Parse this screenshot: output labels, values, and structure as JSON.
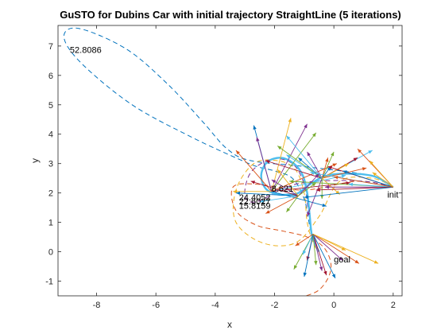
{
  "chart_data": {
    "type": "line",
    "title": "GuSTO for Dubins Car with initial trajectory StraightLine (5 iterations)",
    "xlabel": "x",
    "ylabel": "y",
    "xlim": [
      -9.3,
      2.3
    ],
    "ylim": [
      -1.5,
      7.7
    ],
    "xticks": [
      -8,
      -6,
      -4,
      -2,
      0,
      2
    ],
    "yticks": [
      -1,
      0,
      1,
      2,
      3,
      4,
      5,
      6,
      7
    ],
    "grid": false,
    "legend": "none",
    "colors": [
      "#0072BD",
      "#D95319",
      "#EDB120",
      "#7E2F8E",
      "#77AC30",
      "#4DBEEE",
      "#A2142F"
    ],
    "annotations": [
      {
        "text": "52.8086",
        "x": -8.9,
        "y": 6.88
      },
      {
        "text": "8.621",
        "x": -2.1,
        "y": 2.15
      },
      {
        "text": "24.4052",
        "x": -3.2,
        "y": 1.85
      },
      {
        "text": "22.6027",
        "x": -3.2,
        "y": 1.72
      },
      {
        "text": "15.8159",
        "x": -3.2,
        "y": 1.57
      },
      {
        "text": "init",
        "x": 1.8,
        "y": 1.95
      },
      {
        "text": "goal",
        "x": 0.0,
        "y": -0.25
      }
    ],
    "series": [
      {
        "role": "iter1",
        "color": "#0072BD",
        "dash": "dashed",
        "points": [
          [
            2.0,
            2.2
          ],
          [
            1.2,
            2.6
          ],
          [
            -1.0,
            2.9
          ],
          [
            -2.8,
            3.1
          ],
          [
            -3.6,
            3.5
          ],
          [
            -4.4,
            4.4
          ],
          [
            -5.6,
            5.7
          ],
          [
            -7.0,
            6.9
          ],
          [
            -8.6,
            7.6
          ],
          [
            -9.1,
            7.3
          ],
          [
            -8.5,
            6.4
          ],
          [
            -6.8,
            5.0
          ],
          [
            -4.8,
            3.9
          ],
          [
            -3.2,
            3.15
          ],
          [
            -2.6,
            2.9
          ],
          [
            -2.0,
            2.75
          ],
          [
            -1.4,
            2.5
          ],
          [
            -1.0,
            1.8
          ],
          [
            -0.8,
            0.8
          ],
          [
            -0.65,
            0.3
          ],
          [
            -0.5,
            0.0
          ]
        ]
      },
      {
        "role": "iter2",
        "color": "#D95319",
        "dash": "dashed",
        "points": [
          [
            2.0,
            2.2
          ],
          [
            0.8,
            2.4
          ],
          [
            -1.0,
            2.1
          ],
          [
            -2.6,
            2.3
          ],
          [
            -3.4,
            2.2
          ],
          [
            -3.3,
            1.4
          ],
          [
            -2.6,
            0.9
          ],
          [
            -1.7,
            0.7
          ],
          [
            -0.9,
            0.5
          ],
          [
            -0.3,
            0.1
          ],
          [
            -0.1,
            -0.6
          ],
          [
            -0.5,
            -1.3
          ],
          [
            -1.3,
            -1.6
          ]
        ]
      },
      {
        "role": "iter3",
        "color": "#EDB120",
        "dash": "dashed",
        "points": [
          [
            2.0,
            2.2
          ],
          [
            1.3,
            2.5
          ],
          [
            0.2,
            2.4
          ],
          [
            -0.5,
            1.2
          ],
          [
            -1.3,
            0.3
          ],
          [
            -2.4,
            0.3
          ],
          [
            -3.3,
            1.0
          ],
          [
            -3.3,
            2.1
          ],
          [
            -2.7,
            3.0
          ],
          [
            -1.9,
            3.1
          ],
          [
            -1.3,
            2.8
          ],
          [
            -1.0,
            2.0
          ],
          [
            -0.9,
            1.0
          ],
          [
            -0.7,
            0.3
          ],
          [
            -0.5,
            0.0
          ]
        ]
      },
      {
        "role": "iter4",
        "color": "#7E2F8E",
        "dash": "dashed",
        "points": [
          [
            2.0,
            2.2
          ],
          [
            1.0,
            2.4
          ],
          [
            -0.6,
            2.4
          ],
          [
            -1.6,
            2.2
          ],
          [
            -2.6,
            1.7
          ],
          [
            -3.0,
            1.9
          ],
          [
            -2.8,
            2.7
          ],
          [
            -2.1,
            3.15
          ],
          [
            -1.4,
            3.0
          ],
          [
            -1.0,
            2.3
          ],
          [
            -0.85,
            1.3
          ],
          [
            -0.7,
            0.5
          ],
          [
            -0.5,
            0.0
          ]
        ]
      },
      {
        "role": "final",
        "color": "#4DBEEE",
        "dash": "solid",
        "width": 2.4,
        "points": [
          [
            2.0,
            2.2
          ],
          [
            1.4,
            2.55
          ],
          [
            0.7,
            2.65
          ],
          [
            -0.2,
            2.6
          ],
          [
            -0.8,
            2.3
          ],
          [
            -1.2,
            2.0
          ],
          [
            -1.5,
            1.95
          ],
          [
            -1.9,
            1.95
          ],
          [
            -2.3,
            2.15
          ],
          [
            -2.45,
            2.6
          ],
          [
            -2.25,
            3.05
          ],
          [
            -1.8,
            3.2
          ],
          [
            -1.35,
            3.0
          ],
          [
            -1.05,
            2.6
          ],
          [
            -0.9,
            2.0
          ],
          [
            -0.82,
            1.3
          ],
          [
            -0.75,
            0.6
          ],
          [
            -0.62,
            0.25
          ],
          [
            -0.5,
            0.0
          ]
        ]
      }
    ],
    "arrow_fan": [
      {
        "origin": [
          -2.1,
          2.05
        ],
        "targets": [
          [
            -2.7,
            4.3
          ],
          [
            -3.3,
            3.45
          ],
          [
            -1.45,
            4.55
          ],
          [
            -0.9,
            4.35
          ],
          [
            -0.6,
            4.05
          ],
          [
            0.4,
            2.6
          ],
          [
            0.55,
            2.35
          ],
          [
            -0.25,
            1.55
          ],
          [
            0.1,
            3.0
          ],
          [
            -3.4,
            2.05
          ],
          [
            -2.6,
            3.9
          ]
        ]
      },
      {
        "origin": [
          -0.4,
          2.5
        ],
        "targets": [
          [
            0.0,
            3.4
          ],
          [
            1.3,
            3.45
          ],
          [
            0.8,
            3.2
          ],
          [
            -0.1,
            2.9
          ],
          [
            1.1,
            2.85
          ],
          [
            0.2,
            1.95
          ],
          [
            -0.9,
            1.2
          ],
          [
            -0.4,
            1.8
          ],
          [
            -1.6,
            3.3
          ],
          [
            -2.3,
            3.1
          ],
          [
            -1.2,
            3.2
          ],
          [
            -0.2,
            3.2
          ],
          [
            0.5,
            3.0
          ],
          [
            -0.9,
            3.4
          ],
          [
            -1.9,
            3.6
          ],
          [
            -1.6,
            3.95
          ]
        ]
      },
      {
        "origin": [
          -0.7,
          0.6
        ],
        "targets": [
          [
            -0.25,
            -0.8
          ],
          [
            0.05,
            -0.9
          ],
          [
            0.85,
            -0.4
          ],
          [
            1.5,
            -0.4
          ],
          [
            0.3,
            -0.3
          ],
          [
            -1.35,
            -0.6
          ],
          [
            -1.05,
            -0.1
          ],
          [
            -0.9,
            -0.3
          ],
          [
            -1.0,
            -0.85
          ],
          [
            -1.3,
            0.2
          ],
          [
            0.4,
            0.05
          ],
          [
            -0.4,
            -0.65
          ],
          [
            -0.6,
            -0.45
          ]
        ]
      },
      {
        "origin": [
          2.0,
          2.2
        ],
        "targets": [
          [
            -0.8,
            2.7
          ],
          [
            -0.2,
            2.9
          ],
          [
            0.3,
            2.75
          ],
          [
            0.8,
            3.5
          ],
          [
            1.3,
            2.7
          ],
          [
            -0.3,
            2.2
          ],
          [
            -1.5,
            2.4
          ],
          [
            0.5,
            2.3
          ],
          [
            -0.6,
            2.1
          ],
          [
            -1.0,
            1.85
          ],
          [
            0.0,
            2.55
          ],
          [
            1.2,
            3.1
          ]
        ]
      },
      {
        "origin": [
          -1.2,
          1.9
        ],
        "targets": [
          [
            -2.1,
            2.45
          ],
          [
            -1.6,
            1.35
          ],
          [
            -2.5,
            1.7
          ],
          [
            -2.8,
            2.4
          ],
          [
            -3.3,
            2.0
          ],
          [
            -2.3,
            1.3
          ],
          [
            -1.9,
            2.8
          ],
          [
            -0.5,
            2.65
          ],
          [
            -0.6,
            2.35
          ]
        ]
      }
    ]
  }
}
